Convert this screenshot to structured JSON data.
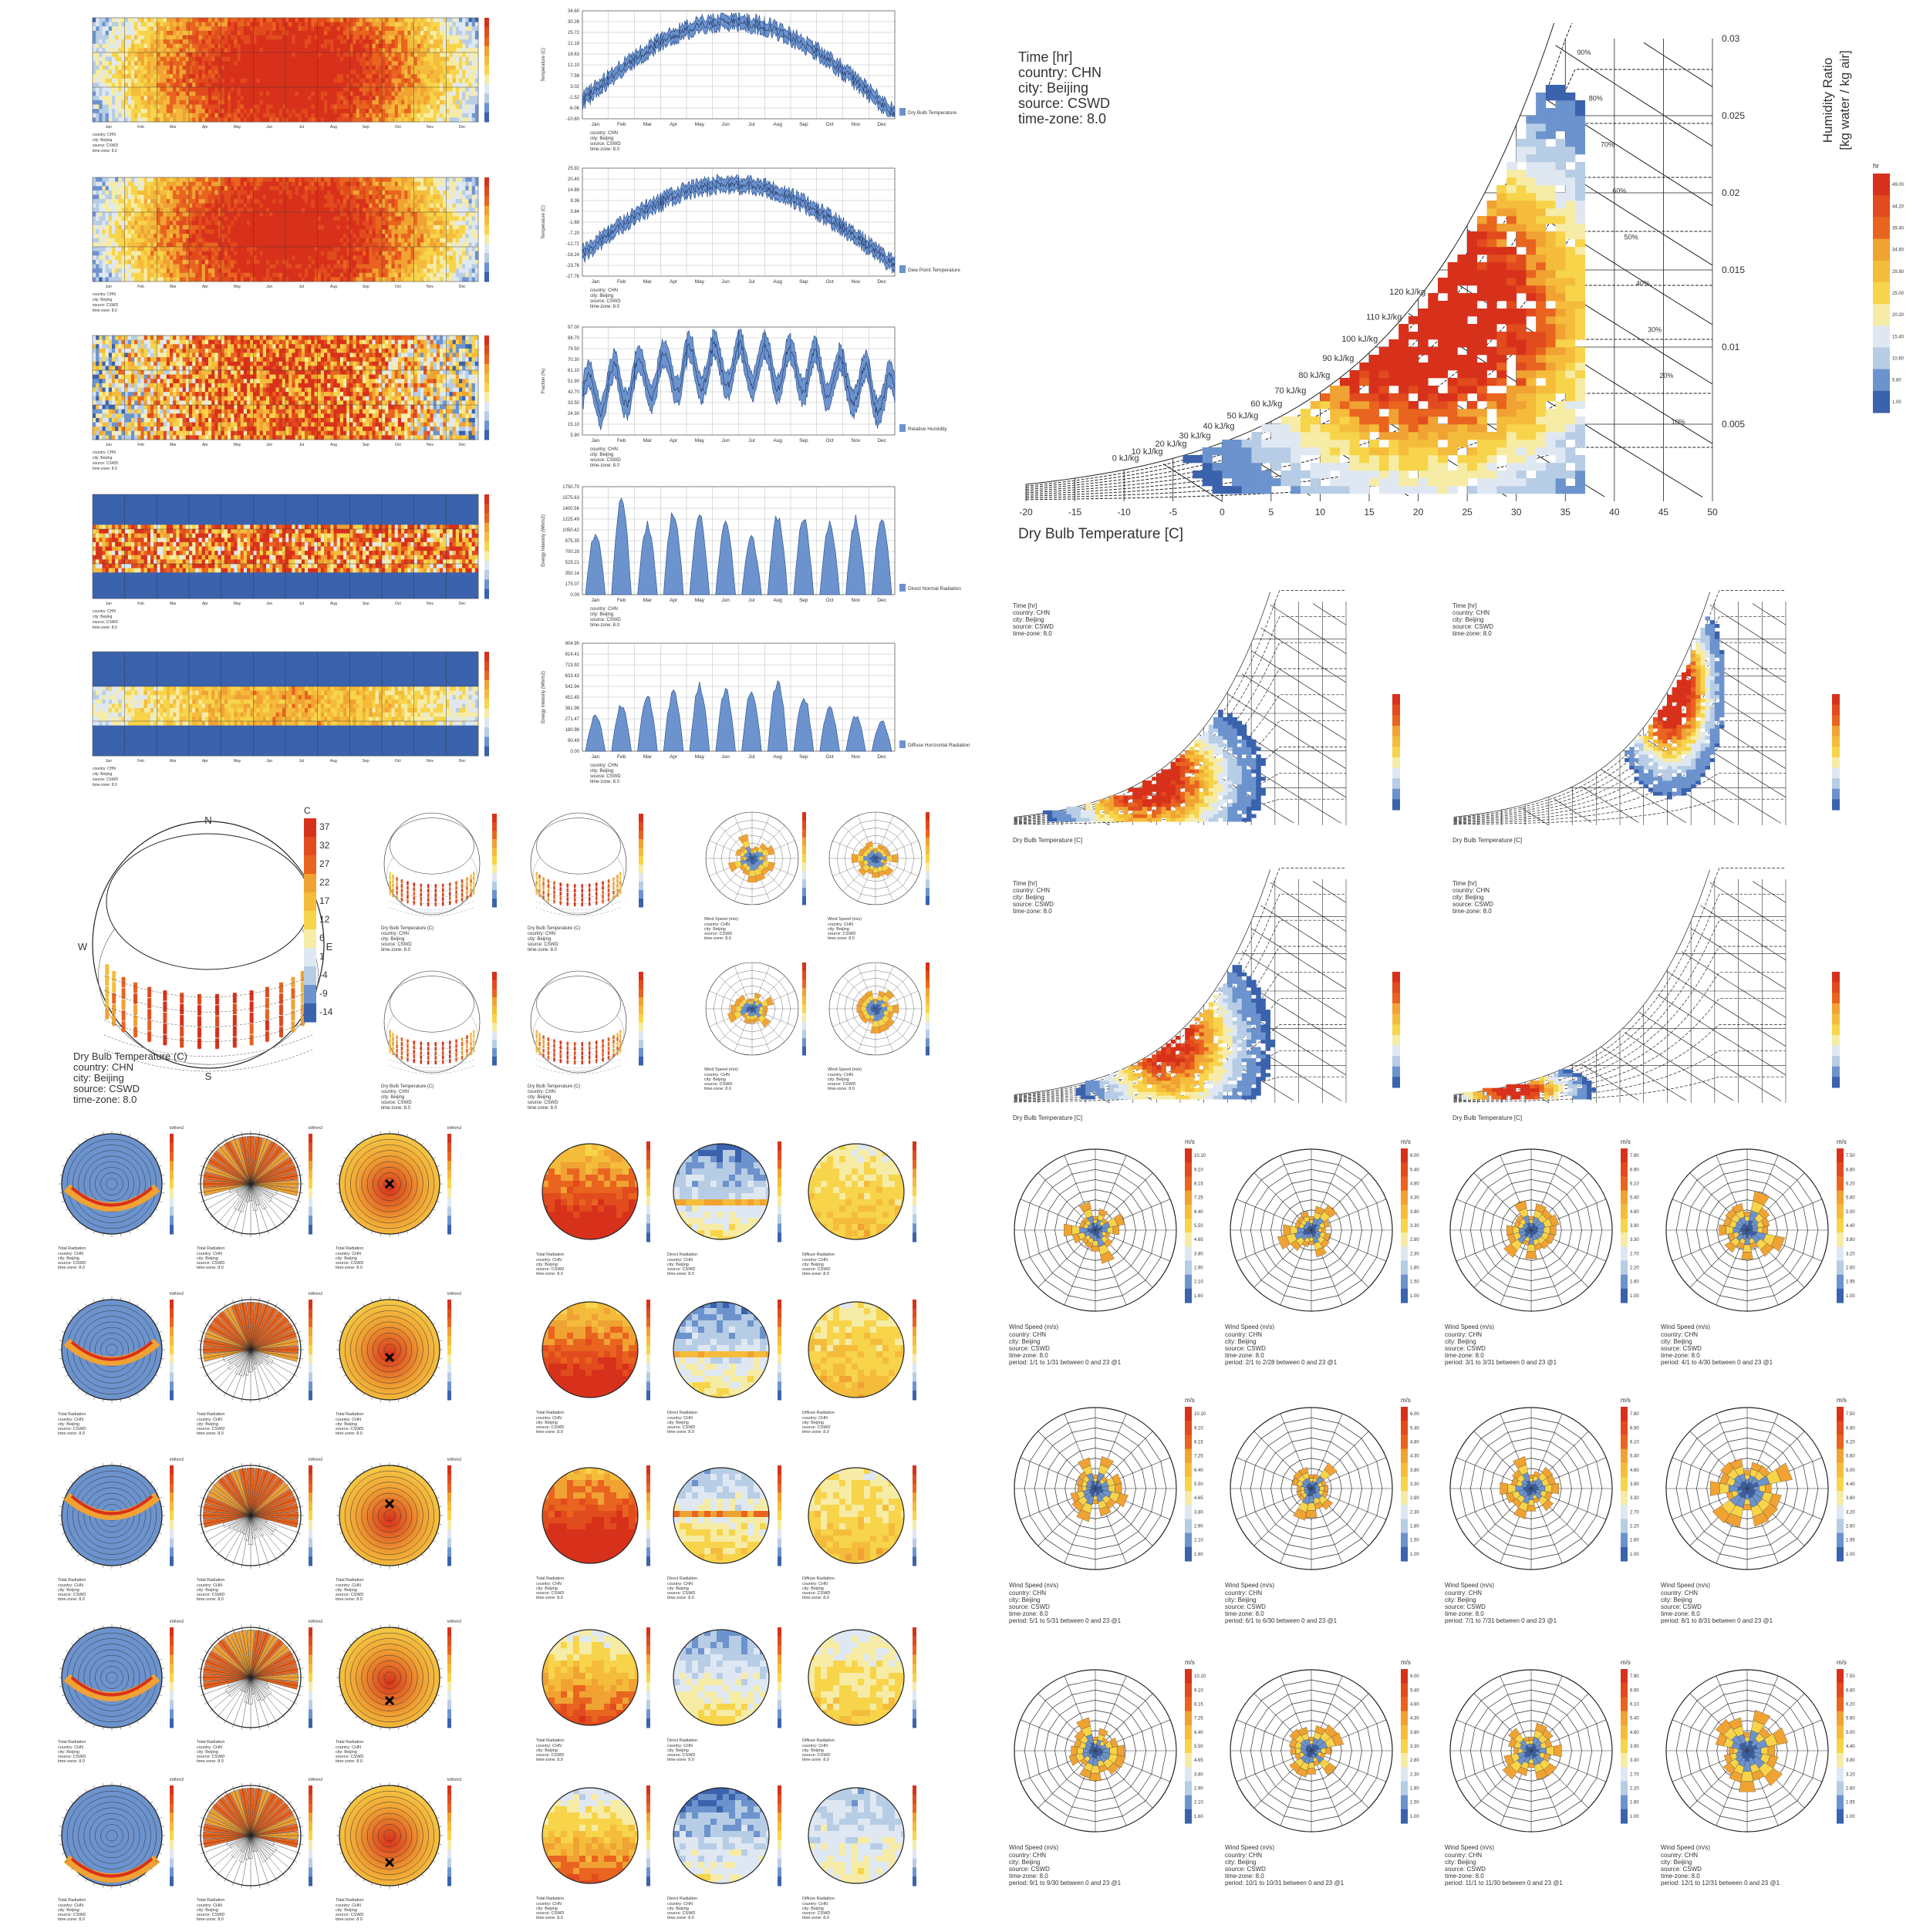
{
  "palette": {
    "blue_dark": "#3a62ad",
    "blue_mid": "#6c93cd",
    "blue_light": "#b7cde6",
    "yellow_light": "#f6eca6",
    "yellow": "#f7d44a",
    "orange": "#f0a233",
    "orange_red": "#e9641f",
    "red": "#d8311b"
  },
  "heatmaps": [
    {
      "name": "dry-bulb",
      "kind": "warm"
    },
    {
      "name": "dew-point",
      "kind": "warm"
    },
    {
      "name": "relative-humidity",
      "kind": "striped"
    },
    {
      "name": "direct-normal",
      "kind": "day-band"
    },
    {
      "name": "diffuse-horizontal",
      "kind": "day-band-soft"
    }
  ],
  "heatmap_caption": {
    "country": "country: CHN",
    "city": "city: Beijing",
    "source": "source: CSWD",
    "tz": "time-zone: 8.0"
  },
  "months": [
    "Jan",
    "Feb",
    "Mar",
    "Apr",
    "May",
    "Jun",
    "Jul",
    "Aug",
    "Sep",
    "Oct",
    "Nov",
    "Dec"
  ],
  "monthly_charts": [
    {
      "legend": "Dry Bulb Temperature",
      "ylabel": "Temperature (C)",
      "ticks": [
        "34.60",
        "30.26",
        "25.72",
        "21.18",
        "16.63",
        "12.10",
        "7.56",
        "3.02",
        "-1.52",
        "-6.06",
        "-10.60"
      ]
    },
    {
      "legend": "Dew Point Temperature",
      "ylabel": "Temperature (C)",
      "ticks": [
        "25.92",
        "20.40",
        "14.88",
        "9.36",
        "3.84",
        "-1.68",
        "-7.20",
        "-12.72",
        "-18.24",
        "-23.76",
        "-27.76"
      ]
    },
    {
      "legend": "Relative Humidity",
      "ylabel": "Fraction (%)",
      "ticks": [
        "97.00",
        "88.70",
        "79.50",
        "70.30",
        "61.10",
        "51.90",
        "42.70",
        "33.50",
        "24.30",
        "15.10",
        "5.90"
      ]
    },
    {
      "legend": "Direct Normal Radiation",
      "ylabel": "Energy Intensity (Wh/m2)",
      "ticks": [
        "1750.70",
        "1575.63",
        "1400.56",
        "1225.49",
        "1050.42",
        "875.35",
        "700.28",
        "525.21",
        "350.14",
        "175.07",
        "0.00"
      ]
    },
    {
      "legend": "Diffuse Horizontal Radiation",
      "ylabel": "Energy Intensity (Wh/m2)",
      "ticks": [
        "904.90",
        "814.41",
        "723.92",
        "633.43",
        "542.94",
        "452.45",
        "361.96",
        "271.47",
        "180.98",
        "90.49",
        "0.00"
      ]
    }
  ],
  "chart_meta": {
    "country": "country: CHN",
    "city": "city: Beijing",
    "source": "source: CSWD",
    "tz": "time-zone: 8.0"
  },
  "psychro_main": {
    "title_lines": [
      "Time [hr]",
      "country: CHN",
      "city: Beijing",
      "source: CSWD",
      "time-zone: 8.0"
    ],
    "xlabel": "Dry Bulb Temperature [C]",
    "ylabel_1": "Humidity Ratio",
    "ylabel_2": "[kg water / kg air]",
    "x_ticks": [
      "-20",
      "-15",
      "-10",
      "-5",
      "0",
      "5",
      "10",
      "15",
      "20",
      "25",
      "30",
      "35",
      "40",
      "45",
      "50"
    ],
    "y_ticks": [
      "0.03",
      "0.025",
      "0.02",
      "0.015",
      "0.01",
      "0.005"
    ],
    "enthalpy": [
      "0 kJ/kg",
      "10 kJ/kg",
      "20 kJ/kg",
      "30 kJ/kg",
      "40 kJ/kg",
      "50 kJ/kg",
      "60 kJ/kg",
      "70 kJ/kg",
      "80 kJ/kg",
      "90 kJ/kg",
      "100 kJ/kg",
      "110 kJ/kg",
      "120 kJ/kg"
    ],
    "rh": [
      "10%",
      "20%",
      "30%",
      "40%",
      "50%",
      "60%",
      "70%",
      "80%",
      "90%",
      "100%"
    ],
    "legend_unit": "hr",
    "legend_values": [
      "49.00",
      "44.20",
      "39.40",
      "34.60",
      "29.80",
      "25.00",
      "20.20",
      "15.40",
      "10.60",
      "5.80",
      "1.00"
    ]
  },
  "small_psychro_caption": [
    "Time [hr]",
    "country: CHN",
    "city: Beijing",
    "source: CSWD",
    "time-zone: 8.0"
  ],
  "small_psychro_xlabel": "Dry Bulb Temperature [C]",
  "sunpath": {
    "unit": "C",
    "legend": [
      "37",
      "32",
      "27",
      "22",
      "17",
      "12",
      "6",
      "1",
      "-4",
      "-9",
      "-14"
    ],
    "compass": [
      "N",
      "E",
      "S",
      "W"
    ],
    "caption": [
      "Dry Bulb Temperature (C)",
      "country: CHN",
      "city: Beijing",
      "source: CSWD",
      "time-zone: 8.0"
    ]
  },
  "wind_unit": "m/s",
  "wind_caption_title": "Wind Speed (m/s)",
  "wind_legends": [
    [
      "10.10",
      "9.10",
      "8.15",
      "7.25",
      "6.40",
      "5.50",
      "4.65",
      "3.80",
      "2.90",
      "2.10",
      "1.60"
    ],
    [
      "6.00",
      "5.40",
      "4.80",
      "4.30",
      "3.80",
      "3.30",
      "2.80",
      "2.30",
      "1.80",
      "1.50",
      "1.00"
    ],
    [
      "7.80",
      "6.90",
      "6.10",
      "5.40",
      "4.60",
      "3.90",
      "3.30",
      "2.70",
      "2.20",
      "1.60",
      "1.00"
    ],
    [
      "7.50",
      "6.80",
      "6.20",
      "5.60",
      "5.00",
      "4.40",
      "3.80",
      "3.20",
      "2.60",
      "1.95",
      "1.00"
    ]
  ],
  "wind_periods": [
    "period: 1/1 to 1/31 between 0 and 23 @1",
    "period: 2/1 to 2/28 between 0 and 23 @1",
    "period: 3/1 to 3/31 between 0 and 23 @1",
    "period: 4/1 to 4/30 between 0 and 23 @1",
    "period: 5/1 to 5/31 between 0 and 23 @1",
    "period: 6/1 to 6/30 between 0 and 23 @1",
    "period: 7/1 to 7/31 between 0 and 23 @1",
    "period: 8/1 to 8/31 between 0 and 23 @1",
    "period: 9/1 to 9/30 between 0 and 23 @1",
    "period: 10/1 to 10/31 between 0 and 23 @1",
    "period: 11/1 to 11/30 between 0 and 23 @1",
    "period: 12/1 to 12/31 between 0 and 23 @1"
  ],
  "radiation_caption": "Total Radiation",
  "radiation_unit": "kWh/m2",
  "sky_captions": [
    "Total Radiation",
    "Direct Radiation",
    "Diffuse Radiation"
  ]
}
